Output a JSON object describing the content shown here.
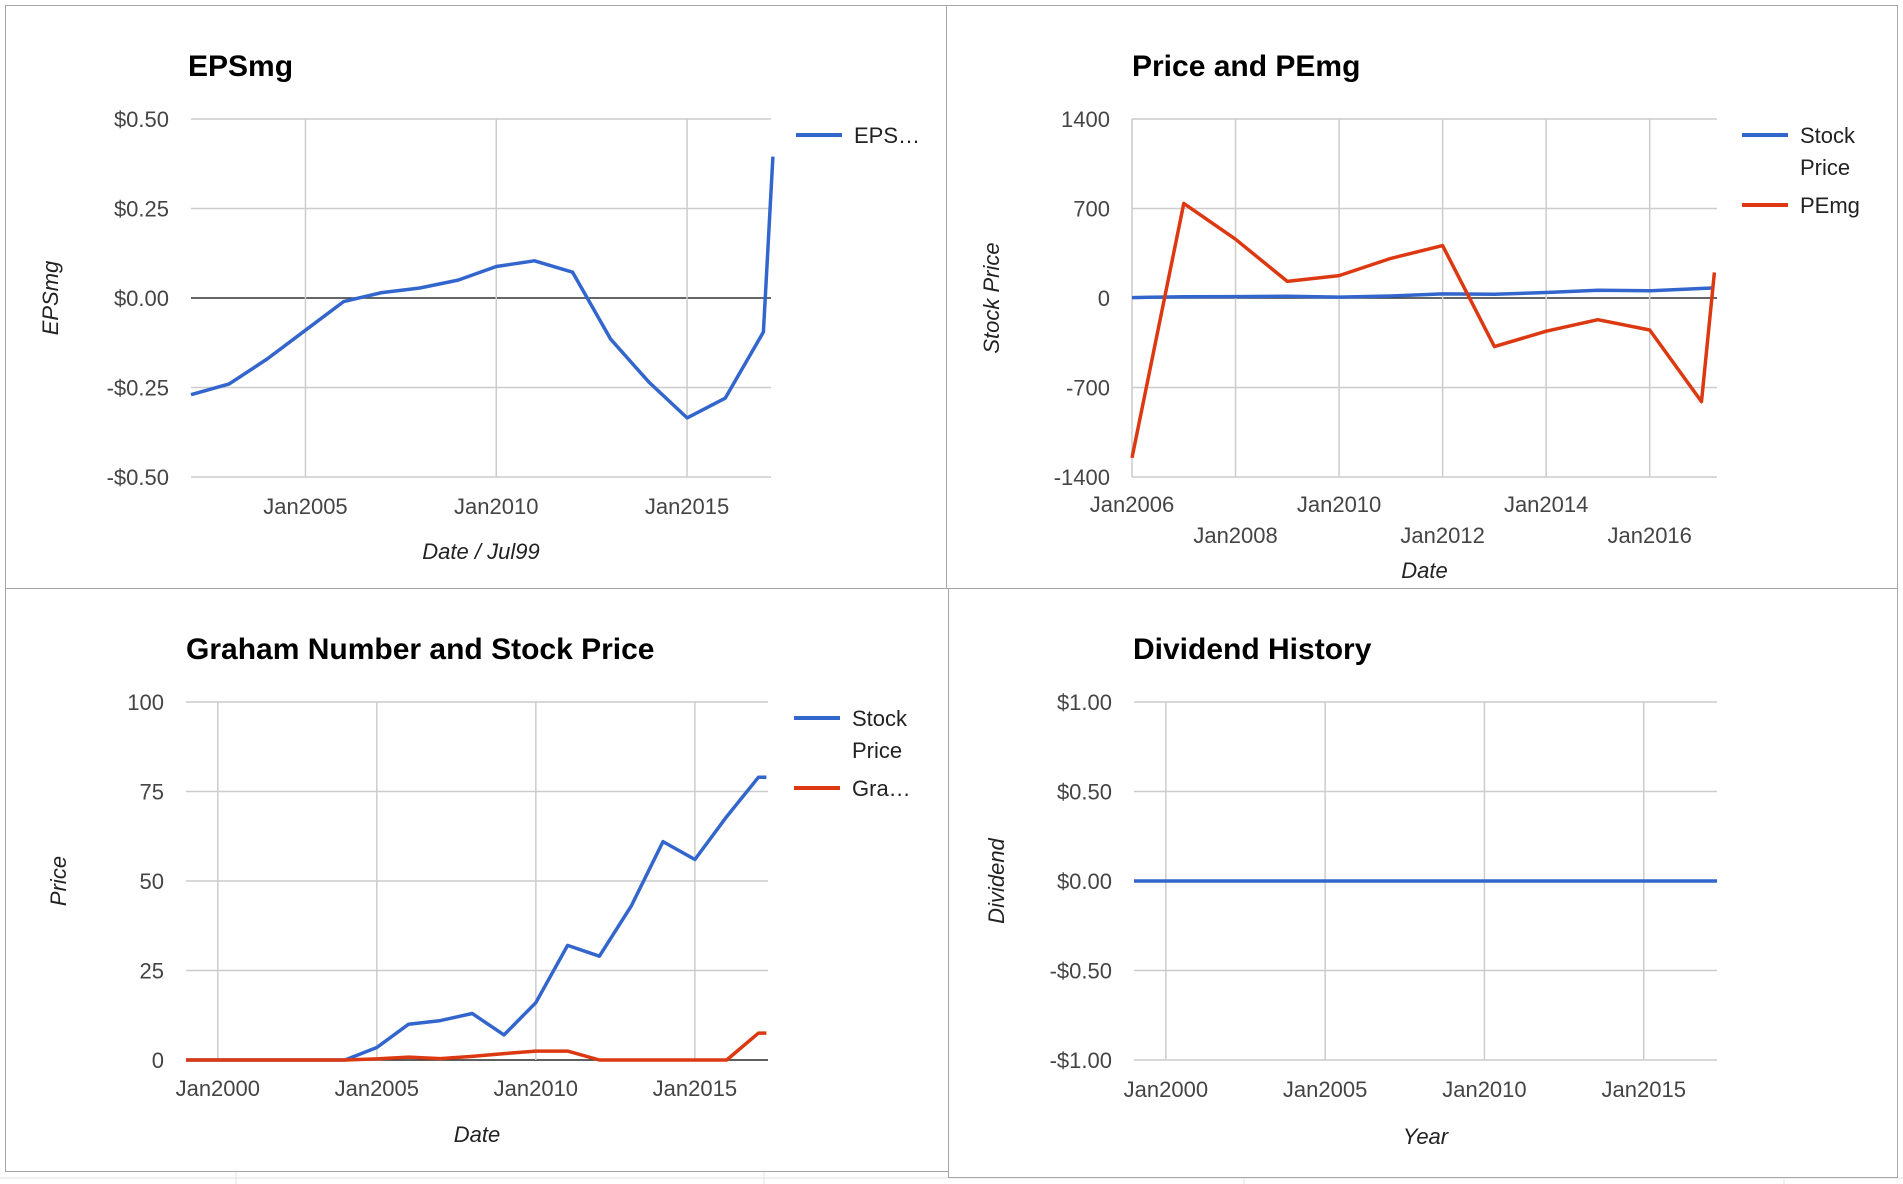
{
  "colors": {
    "blue": "#3366cc",
    "red": "#dc3912"
  },
  "chart_data": [
    {
      "id": "epsmg",
      "type": "line",
      "title": "EPSmg",
      "xlabel": "Date / Jul99",
      "ylabel": "EPSmg",
      "x_type": "year",
      "xlim": [
        2002.0,
        2017.2
      ],
      "ylim": [
        -0.5,
        0.5
      ],
      "yticks": [
        -0.5,
        -0.25,
        0.0,
        0.25,
        0.5
      ],
      "ytick_labels": [
        "-$0.50",
        "-$0.25",
        "$0.00",
        "$0.25",
        "$0.50"
      ],
      "xticks": [
        2005,
        2010,
        2015
      ],
      "xtick_labels": [
        "Jan2005",
        "Jan2010",
        "Jan2015"
      ],
      "legend_position": "right",
      "series": [
        {
          "name": "EPS…",
          "color": "#3366cc",
          "x": [
            2002.0,
            2003.0,
            2004.0,
            2005.0,
            2006.0,
            2007.0,
            2008.0,
            2009.0,
            2010.0,
            2011.0,
            2012.0,
            2013.0,
            2014.0,
            2015.0,
            2016.0,
            2017.0,
            2017.25
          ],
          "y": [
            -0.27,
            -0.24,
            -0.17,
            -0.09,
            -0.01,
            0.015,
            0.028,
            0.05,
            0.088,
            0.104,
            0.072,
            -0.115,
            -0.235,
            -0.335,
            -0.28,
            -0.095,
            0.395
          ]
        }
      ]
    },
    {
      "id": "price-pemg",
      "type": "line",
      "title": "Price and PEmg",
      "xlabel": "Date",
      "ylabel": "Stock Price",
      "x_type": "year",
      "xlim": [
        2006.0,
        2017.3
      ],
      "ylim": [
        -1400,
        1400
      ],
      "yticks": [
        -1400,
        -700,
        0,
        700,
        1400
      ],
      "ytick_labels": [
        "-1400",
        "-700",
        "0",
        "700",
        "1400"
      ],
      "xticks": [
        2006,
        2008,
        2010,
        2012,
        2014,
        2016
      ],
      "xtick_labels": [
        "Jan2006",
        "Jan2008",
        "Jan2010",
        "Jan2012",
        "Jan2014",
        "Jan2016"
      ],
      "legend_position": "right",
      "series": [
        {
          "name": "Stock Price",
          "color": "#3366cc",
          "x": [
            2006.0,
            2007.0,
            2008.0,
            2009.0,
            2010.0,
            2011.0,
            2012.0,
            2013.0,
            2014.0,
            2015.0,
            2016.0,
            2017.25
          ],
          "y": [
            3,
            10,
            11,
            13,
            7,
            16,
            32,
            29,
            43,
            61,
            56,
            79
          ]
        },
        {
          "name": "PEmg",
          "color": "#dc3912",
          "x": [
            2006.0,
            2007.0,
            2008.0,
            2009.0,
            2010.0,
            2011.0,
            2012.0,
            2013.0,
            2014.0,
            2015.0,
            2016.0,
            2017.0,
            2017.25
          ],
          "y": [
            -1250,
            740,
            460,
            130,
            175,
            310,
            410,
            -380,
            -260,
            -170,
            -250,
            -810,
            200
          ]
        }
      ]
    },
    {
      "id": "graham",
      "type": "line",
      "title": "Graham Number and Stock Price",
      "xlabel": "Date",
      "ylabel": "Price",
      "x_type": "year",
      "xlim": [
        1999.0,
        2017.3
      ],
      "ylim": [
        0,
        100
      ],
      "yticks": [
        0,
        25,
        50,
        75,
        100
      ],
      "ytick_labels": [
        "0",
        "25",
        "50",
        "75",
        "100"
      ],
      "xticks": [
        2000,
        2005,
        2010,
        2015
      ],
      "xtick_labels": [
        "Jan2000",
        "Jan2005",
        "Jan2010",
        "Jan2015"
      ],
      "legend_position": "right",
      "series": [
        {
          "name": "Stock Price",
          "color": "#3366cc",
          "x": [
            1999.0,
            2000.0,
            2001.0,
            2002.0,
            2003.0,
            2004.0,
            2005.0,
            2006.0,
            2007.0,
            2008.0,
            2009.0,
            2010.0,
            2011.0,
            2012.0,
            2013.0,
            2014.0,
            2015.0,
            2016.0,
            2017.0,
            2017.25
          ],
          "y": [
            0,
            0,
            0,
            0,
            0,
            0,
            3.5,
            10,
            11,
            13,
            7,
            16,
            32,
            29,
            43,
            61,
            56,
            68,
            79,
            79
          ]
        },
        {
          "name": "Gra…",
          "color": "#dc3912",
          "x": [
            1999.0,
            2000.0,
            2001.0,
            2002.0,
            2003.0,
            2004.0,
            2005.0,
            2006.0,
            2007.0,
            2008.0,
            2009.0,
            2010.0,
            2011.0,
            2012.0,
            2013.0,
            2014.0,
            2015.0,
            2016.0,
            2017.0,
            2017.25
          ],
          "y": [
            0,
            0,
            0,
            0,
            0,
            0,
            0.3,
            0.8,
            0.4,
            1.0,
            1.8,
            2.5,
            2.5,
            0,
            0,
            0,
            0,
            0,
            7.5,
            7.5
          ]
        }
      ]
    },
    {
      "id": "dividend",
      "type": "line",
      "title": "Dividend History",
      "xlabel": "Year",
      "ylabel": "Dividend",
      "x_type": "year",
      "xlim": [
        1999.0,
        2017.3
      ],
      "ylim": [
        -1.0,
        1.0
      ],
      "yticks": [
        -1.0,
        -0.5,
        0.0,
        0.5,
        1.0
      ],
      "ytick_labels": [
        "-$1.00",
        "-$0.50",
        "$0.00",
        "$0.50",
        "$1.00"
      ],
      "xticks": [
        2000,
        2005,
        2010,
        2015
      ],
      "xtick_labels": [
        "Jan2000",
        "Jan2005",
        "Jan2010",
        "Jan2015"
      ],
      "legend_position": "none",
      "series": [
        {
          "color": "#3366cc",
          "x": [
            1999.0,
            2017.3
          ],
          "y": [
            0,
            0
          ]
        }
      ]
    }
  ]
}
